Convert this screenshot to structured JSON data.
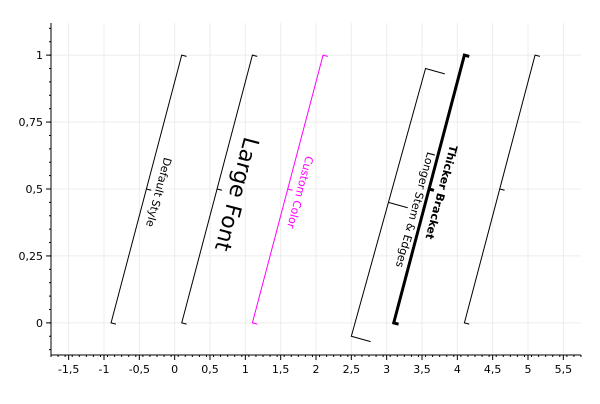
{
  "chart_data": {
    "type": "bracket annotations",
    "xlim": [
      -1.75,
      5.75
    ],
    "ylim": [
      -0.12,
      1.12
    ],
    "xticks": [
      -1.5,
      -1,
      -0.5,
      0,
      0.5,
      1,
      1.5,
      2,
      2.5,
      3,
      3.5,
      4,
      4.5,
      5,
      5.5
    ],
    "xtick_labels": [
      "-1,5",
      "-1",
      "-0,5",
      "0",
      "0,5",
      "1",
      "1,5",
      "2",
      "2,5",
      "3",
      "3,5",
      "4",
      "4,5",
      "5",
      "5,5"
    ],
    "yticks": [
      0,
      0.25,
      0.5,
      0.75,
      1
    ],
    "ytick_labels": [
      "0",
      "0,25",
      "0,5",
      "0,75",
      "1"
    ],
    "grid": true,
    "brackets": [
      {
        "label": "Default Style",
        "x1": -0.9,
        "y1": 0,
        "x2": 0.1,
        "y2": 1,
        "color": "#000000",
        "font_size": "normal",
        "bold": false,
        "line_width": "normal",
        "stem": "short",
        "edges": "short"
      },
      {
        "label": "Large Font",
        "x1": 0.1,
        "y1": 0,
        "x2": 1.1,
        "y2": 1,
        "color": "#000000",
        "font_size": "large",
        "bold": false,
        "line_width": "normal",
        "stem": "short",
        "edges": "short"
      },
      {
        "label": "Custom Color",
        "x1": 1.1,
        "y1": 0,
        "x2": 2.1,
        "y2": 1,
        "color": "#ff00ff",
        "font_size": "normal",
        "bold": false,
        "line_width": "normal",
        "stem": "short",
        "edges": "short"
      },
      {
        "label": "Longer Stem & Edges",
        "x1": 2.5,
        "y1": -0.05,
        "x2": 3.55,
        "y2": 0.95,
        "color": "#000000",
        "font_size": "normal",
        "bold": false,
        "line_width": "normal",
        "stem": "long",
        "edges": "long"
      },
      {
        "label": "Thicker Bracket",
        "x1": 3.1,
        "y1": 0,
        "x2": 4.1,
        "y2": 1,
        "color": "#000000",
        "font_size": "normal",
        "bold": true,
        "line_width": "thick",
        "stem": "short",
        "edges": "short"
      },
      {
        "label": "",
        "x1": 4.1,
        "y1": 0,
        "x2": 5.1,
        "y2": 1,
        "color": "#000000",
        "font_size": "normal",
        "bold": false,
        "line_width": "normal",
        "stem": "short",
        "edges": "short"
      }
    ]
  }
}
